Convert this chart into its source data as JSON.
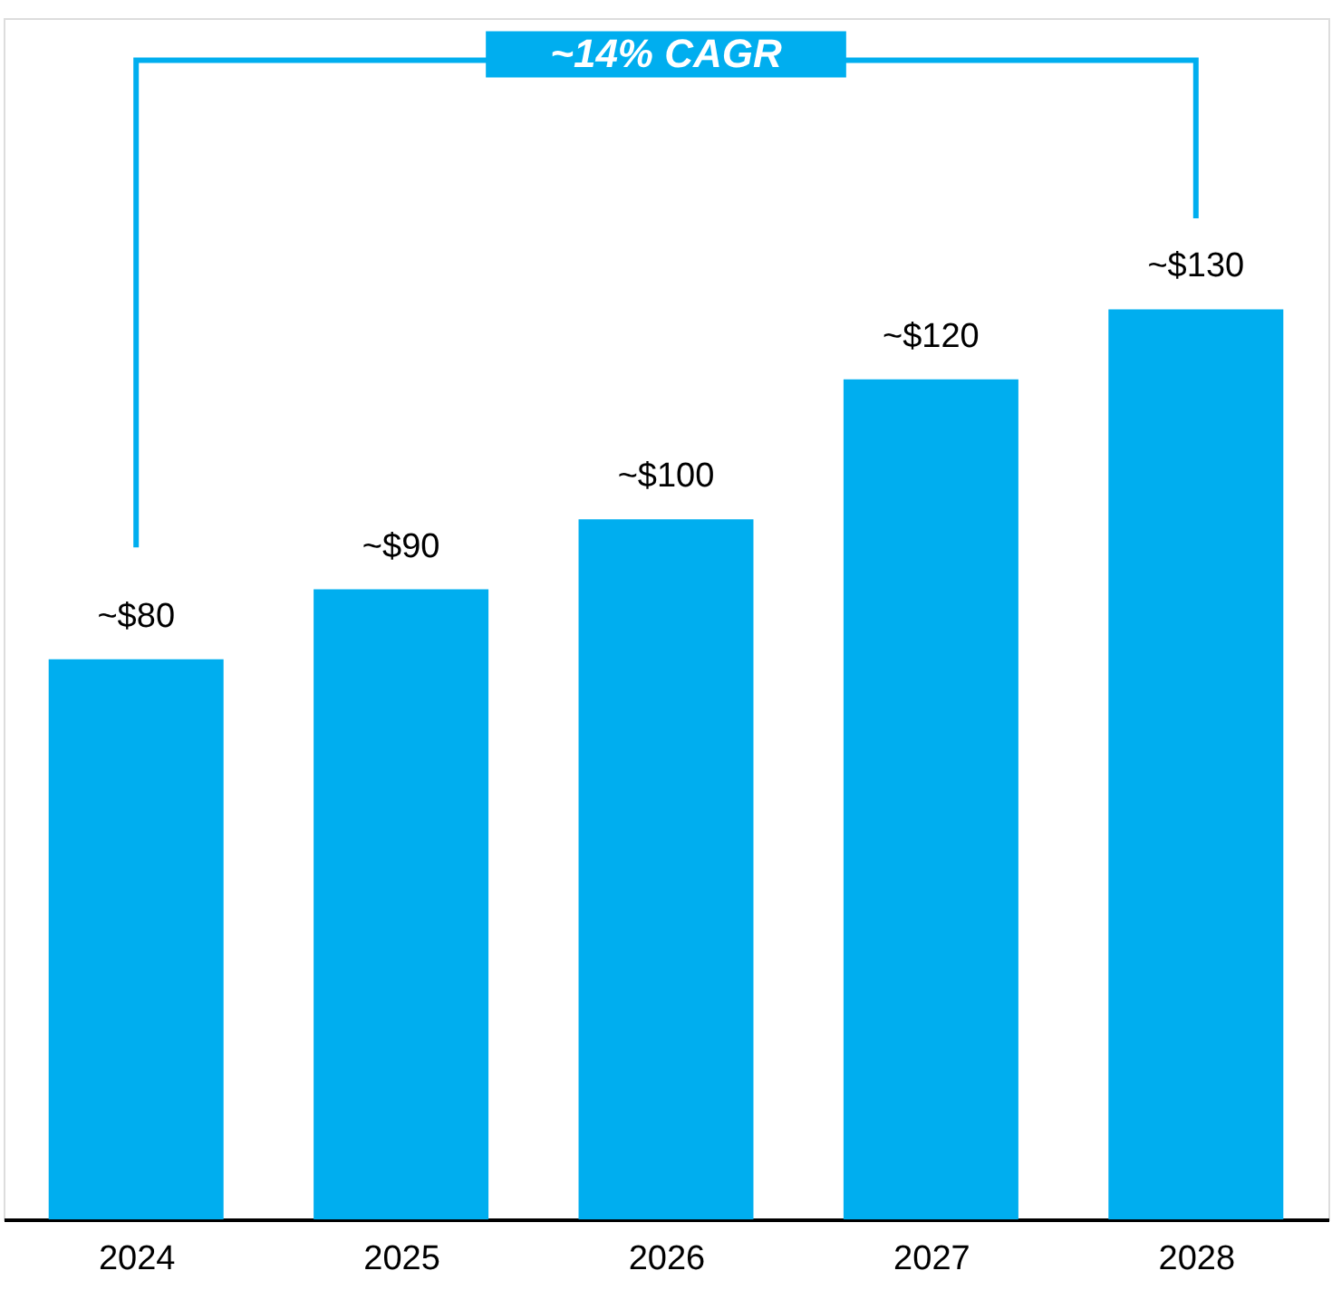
{
  "chart_data": {
    "type": "bar",
    "categories": [
      "2024",
      "2025",
      "2026",
      "2027",
      "2028"
    ],
    "values": [
      80,
      90,
      100,
      120,
      130
    ],
    "value_labels": [
      "~$80",
      "~$90",
      "~$100",
      "~$120",
      "~$130"
    ],
    "color": "#00aeef",
    "annotations": [
      "~14% CAGR"
    ],
    "grid": false
  }
}
